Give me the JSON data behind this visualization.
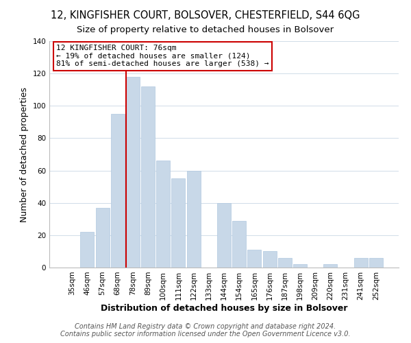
{
  "title": "12, KINGFISHER COURT, BOLSOVER, CHESTERFIELD, S44 6QG",
  "subtitle": "Size of property relative to detached houses in Bolsover",
  "xlabel": "Distribution of detached houses by size in Bolsover",
  "ylabel": "Number of detached properties",
  "bar_color": "#c8d8e8",
  "bar_edge_color": "#b0c8e0",
  "categories": [
    "35sqm",
    "46sqm",
    "57sqm",
    "68sqm",
    "78sqm",
    "89sqm",
    "100sqm",
    "111sqm",
    "122sqm",
    "133sqm",
    "144sqm",
    "154sqm",
    "165sqm",
    "176sqm",
    "187sqm",
    "198sqm",
    "209sqm",
    "220sqm",
    "231sqm",
    "241sqm",
    "252sqm"
  ],
  "values": [
    0,
    22,
    37,
    95,
    118,
    112,
    66,
    55,
    60,
    0,
    40,
    29,
    11,
    10,
    6,
    2,
    0,
    2,
    0,
    6,
    6
  ],
  "ylim": [
    0,
    140
  ],
  "yticks": [
    0,
    20,
    40,
    60,
    80,
    100,
    120,
    140
  ],
  "vline_idx": 4,
  "vline_color": "#cc0000",
  "annotation_title": "12 KINGFISHER COURT: 76sqm",
  "annotation_line1": "← 19% of detached houses are smaller (124)",
  "annotation_line2": "81% of semi-detached houses are larger (538) →",
  "annotation_box_color": "#ffffff",
  "annotation_box_edge": "#cc0000",
  "footer1": "Contains HM Land Registry data © Crown copyright and database right 2024.",
  "footer2": "Contains public sector information licensed under the Open Government Licence v3.0.",
  "background_color": "#ffffff",
  "grid_color": "#d0dce8",
  "title_fontsize": 10.5,
  "subtitle_fontsize": 9.5,
  "axis_label_fontsize": 9,
  "tick_fontsize": 7.5,
  "annotation_fontsize": 8,
  "footer_fontsize": 7
}
